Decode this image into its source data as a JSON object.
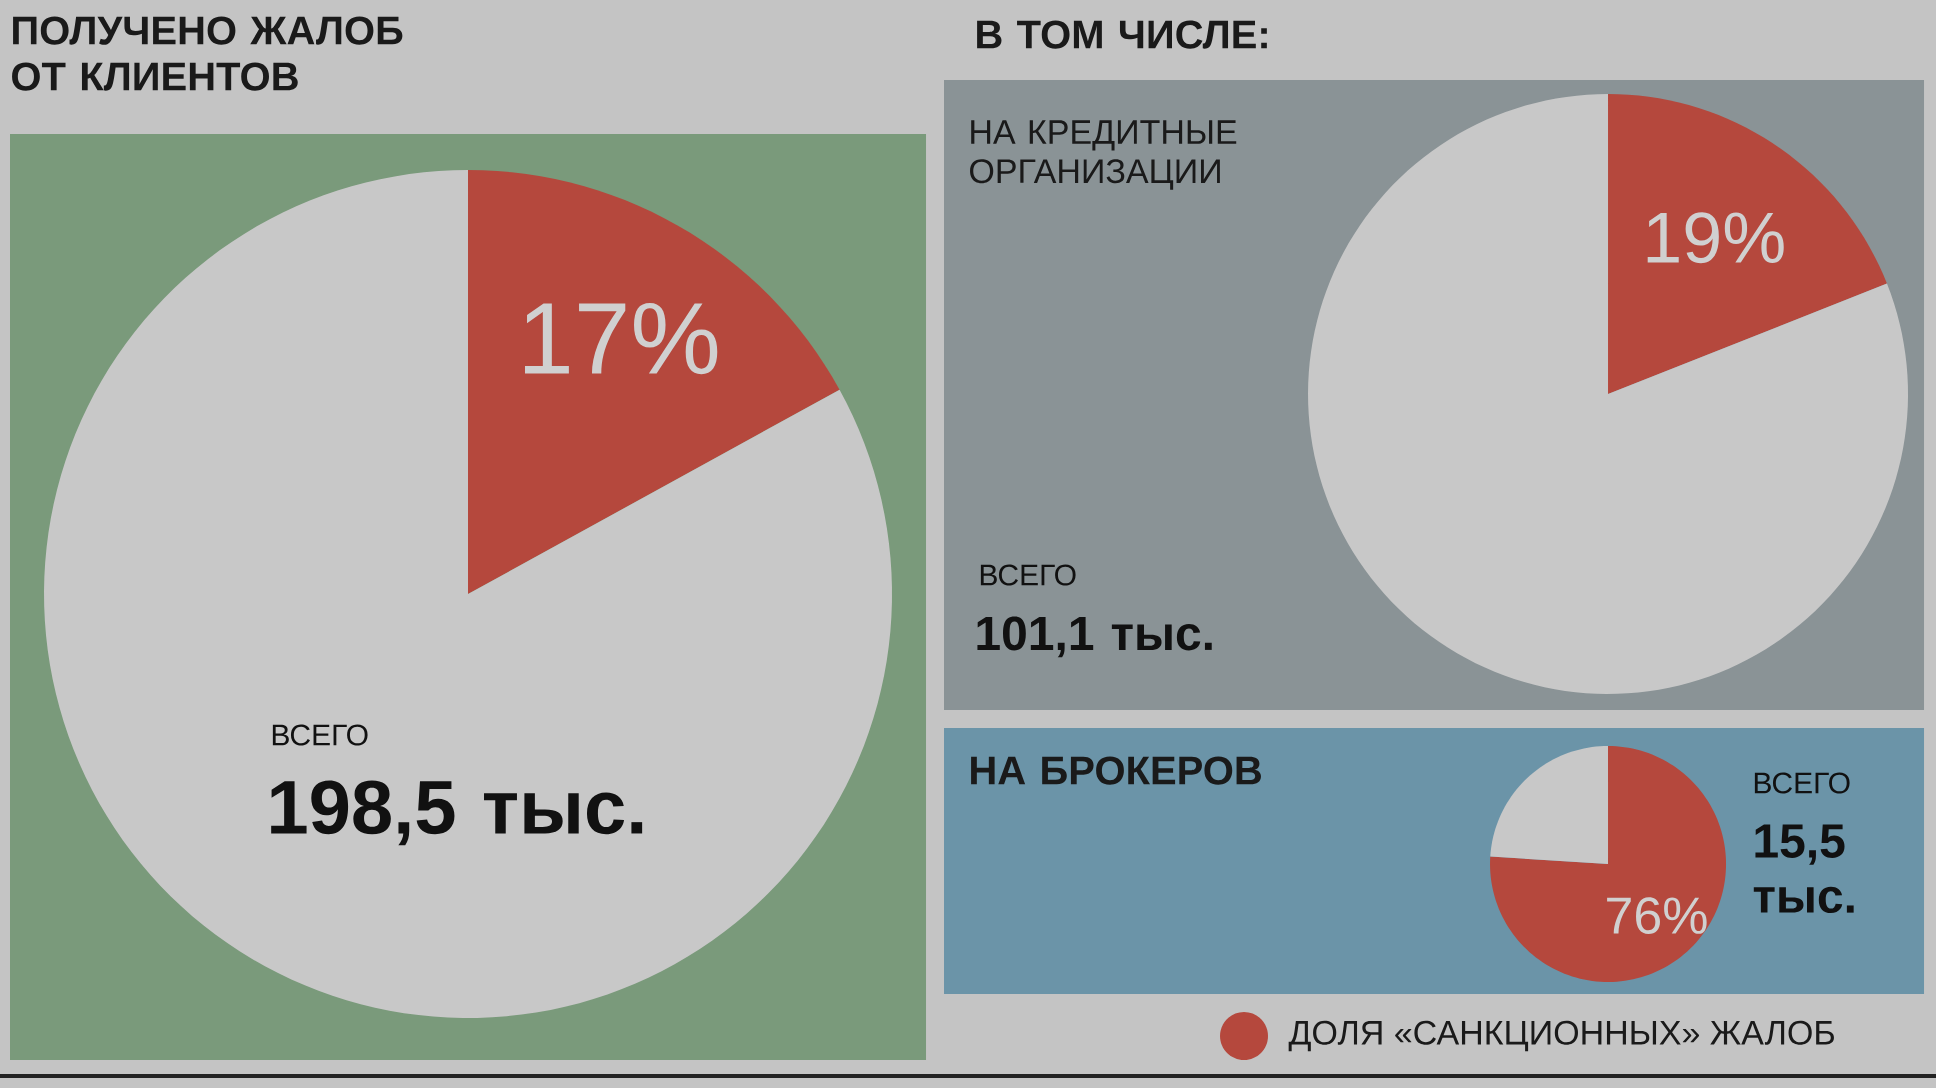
{
  "chart_data": [
    {
      "type": "pie",
      "title": "ПОЛУЧЕНО ЖАЛОБ ОТ КЛИЕНТОВ",
      "categories": [
        null,
        null
      ],
      "values": [
        17,
        83
      ],
      "colors": [
        "#b5483d",
        "#c8c8c8"
      ],
      "value_labels": [
        "17%",
        null
      ],
      "annotations": [
        "ВСЕГО",
        "198,5 тыс."
      ]
    },
    {
      "type": "pie",
      "title": "В ТОМ ЧИСЛЕ:",
      "subtitle": "НА КРЕДИТНЫЕ ОРГАНИЗАЦИИ",
      "categories": [
        null,
        null
      ],
      "values": [
        19,
        81
      ],
      "colors": [
        "#b5483d",
        "#c8c8c8"
      ],
      "value_labels": [
        "19%",
        null
      ],
      "annotations": [
        "ВСЕГО",
        "101,1 тыс."
      ]
    },
    {
      "type": "pie",
      "title": "НА БРОКЕРОВ",
      "categories": [
        "ДОЛЯ «САНКЦИОННЫХ» ЖАЛОБ",
        null
      ],
      "values": [
        76,
        24
      ],
      "colors": [
        "#b5483d",
        "#c8c8c8"
      ],
      "value_labels": [
        "76%",
        null
      ],
      "annotations": [
        "ВСЕГО",
        "15,5 тыс."
      ],
      "legend": "bottom"
    }
  ]
}
